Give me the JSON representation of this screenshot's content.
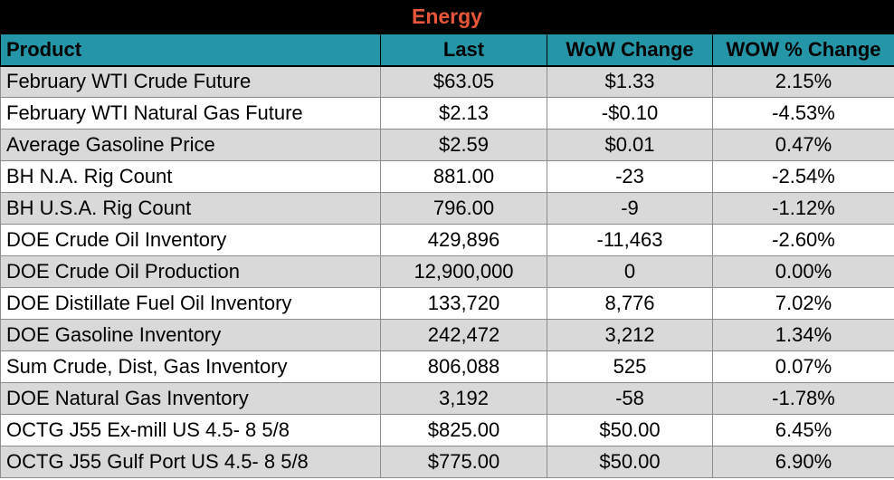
{
  "title": "Energy",
  "headers": [
    "Product",
    "Last",
    "WoW Change",
    "WOW % Change"
  ],
  "rows": [
    [
      "February WTI Crude Future",
      "$63.05",
      "$1.33",
      "2.15%"
    ],
    [
      "February WTI Natural Gas Future",
      "$2.13",
      "-$0.10",
      "-4.53%"
    ],
    [
      "Average Gasoline Price",
      "$2.59",
      "$0.01",
      "0.47%"
    ],
    [
      "BH N.A. Rig Count",
      "881.00",
      "-23",
      "-2.54%"
    ],
    [
      "BH U.S.A. Rig Count",
      "796.00",
      "-9",
      "-1.12%"
    ],
    [
      "DOE Crude Oil Inventory",
      "429,896",
      "-11,463",
      "-2.60%"
    ],
    [
      "DOE Crude Oil Production",
      "12,900,000",
      "0",
      "0.00%"
    ],
    [
      "DOE Distillate Fuel Oil Inventory",
      "133,720",
      "8,776",
      "7.02%"
    ],
    [
      "DOE Gasoline Inventory",
      "242,472",
      "3,212",
      "1.34%"
    ],
    [
      "Sum Crude, Dist, Gas Inventory",
      "806,088",
      "525",
      "0.07%"
    ],
    [
      "DOE Natural Gas Inventory",
      "3,192",
      "-58",
      "-1.78%"
    ],
    [
      "OCTG J55 Ex-mill US 4.5- 8 5/8",
      "$825.00",
      "$50.00",
      "6.45%"
    ],
    [
      "OCTG J55 Gulf Port US 4.5- 8 5/8",
      "$775.00",
      "$50.00",
      "6.90%"
    ]
  ],
  "colors": {
    "title_bg": "#000000",
    "title_text": "#e8563a",
    "header_bg": "#2596a8",
    "row_shade": "#d9d9d9"
  }
}
